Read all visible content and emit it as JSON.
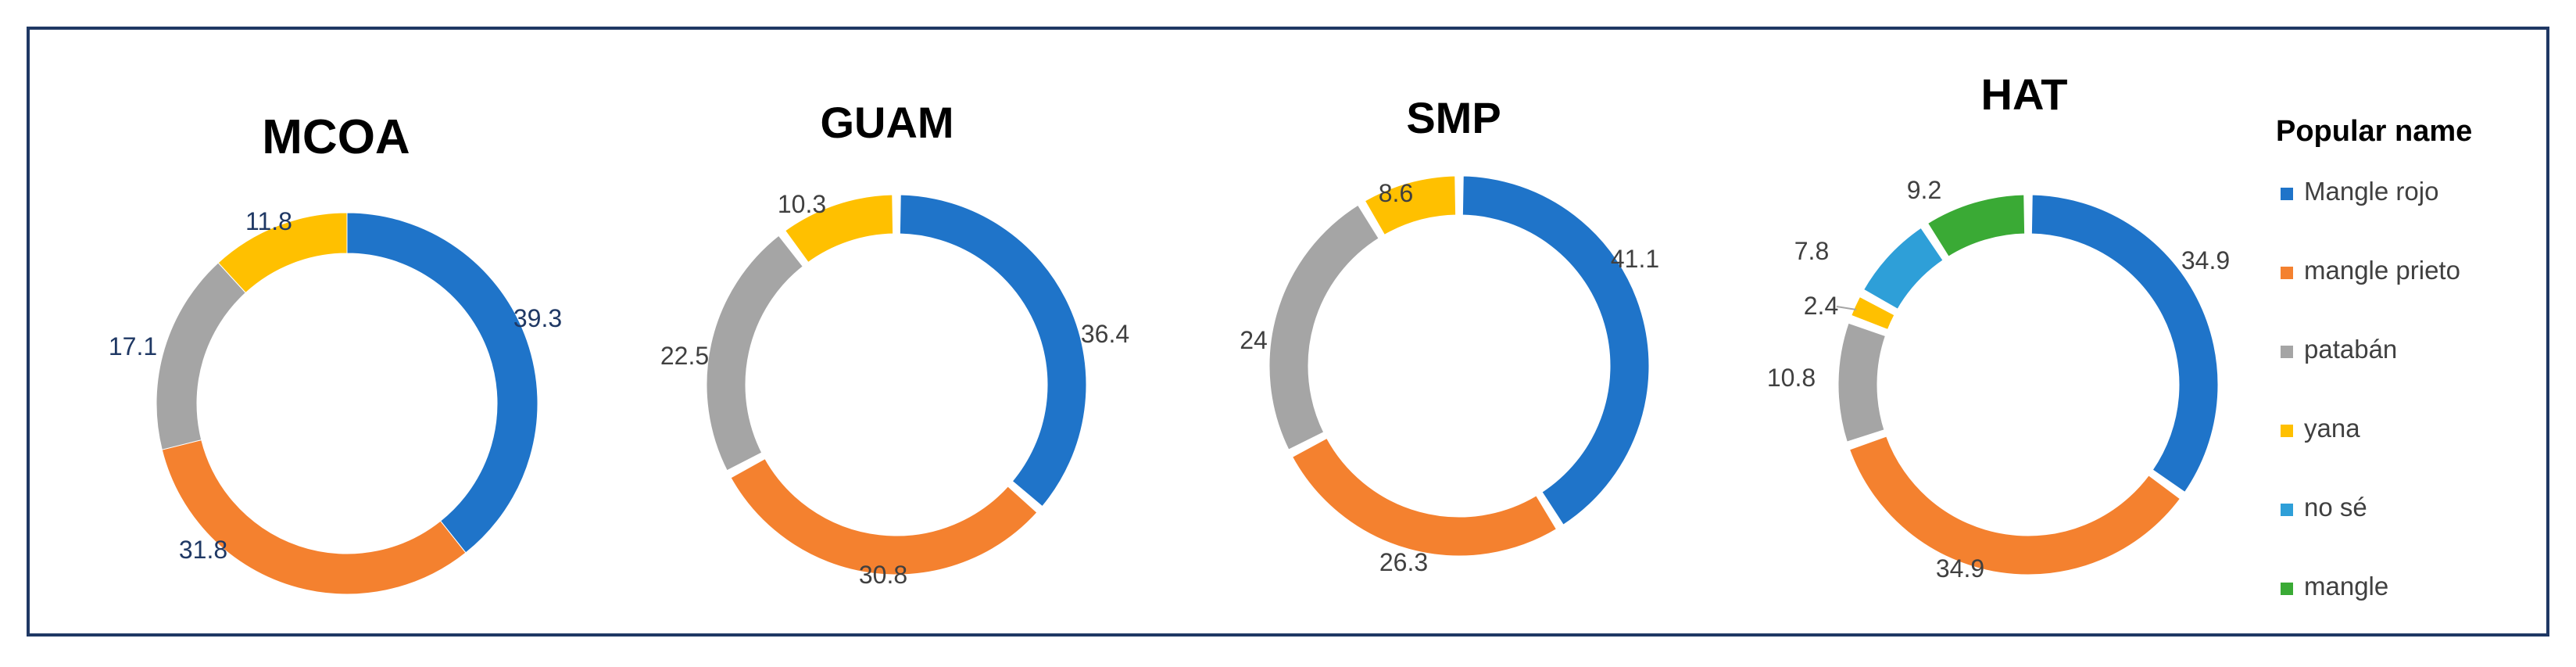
{
  "chart_data": [
    {
      "type": "donut",
      "title": "MCOA",
      "categories": [
        "Mangle rojo",
        "mangle prieto",
        "patabán",
        "yana"
      ],
      "values": [
        39.3,
        31.8,
        17.1,
        11.8
      ],
      "labels": [
        "39.3",
        "31.8",
        "17.1",
        "11.8"
      ]
    },
    {
      "type": "donut",
      "title": "GUAM",
      "categories": [
        "Mangle rojo",
        "mangle prieto",
        "patabán",
        "yana"
      ],
      "values": [
        36.4,
        30.8,
        22.5,
        10.3
      ],
      "labels": [
        "36.4",
        "30.8",
        "22.5",
        "10.3"
      ]
    },
    {
      "type": "donut",
      "title": "SMP",
      "categories": [
        "Mangle rojo",
        "mangle prieto",
        "patabán",
        "yana"
      ],
      "values": [
        41.1,
        26.3,
        24,
        8.6
      ],
      "labels": [
        "41.1",
        "26.3",
        "24",
        "8.6"
      ]
    },
    {
      "type": "donut",
      "title": "HAT",
      "categories": [
        "Mangle rojo",
        "mangle prieto",
        "patabán",
        "yana",
        "no sé",
        "mangle"
      ],
      "values": [
        34.9,
        34.9,
        10.8,
        2.4,
        7.8,
        9.2
      ],
      "labels": [
        "34.9",
        "34.9",
        "10.8",
        "2.4",
        "7.8",
        "9.2"
      ]
    }
  ],
  "legend": {
    "title": "Popular name",
    "placement": "right",
    "items": [
      {
        "label": "Mangle rojo",
        "color": "#1f74c9"
      },
      {
        "label": "mangle prieto",
        "color": "#f4812f"
      },
      {
        "label": "patabán",
        "color": "#a5a5a5"
      },
      {
        "label": "yana",
        "color": "#ffc000"
      },
      {
        "label": "no sé",
        "color": "#2e9fd8"
      },
      {
        "label": "mangle",
        "color": "#3aaa35"
      }
    ]
  },
  "colors": {
    "Mangle rojo": "#1f74c9",
    "mangle prieto": "#f4812f",
    "patabán": "#a5a5a5",
    "yana": "#ffc000",
    "no sé": "#2e9fd8",
    "mangle": "#3aaa35",
    "border": "#1f3864"
  }
}
